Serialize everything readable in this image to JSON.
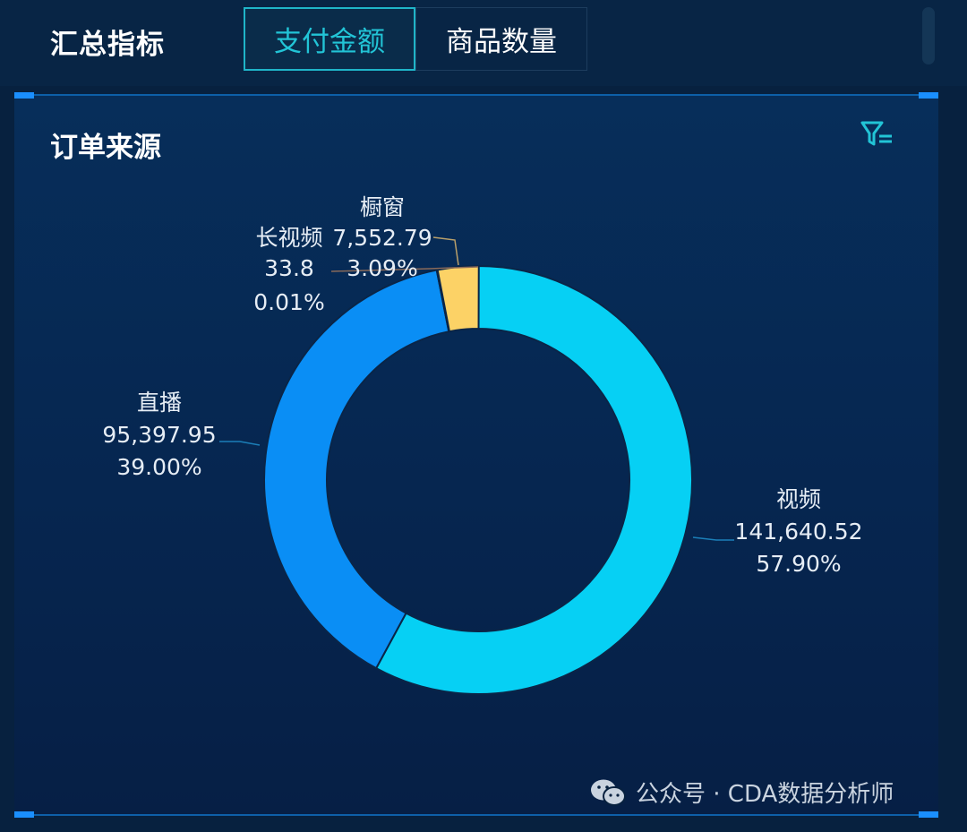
{
  "header": {
    "title": "汇总指标",
    "tabs": [
      {
        "label": "支付金额",
        "active": true
      },
      {
        "label": "商品数量",
        "active": false
      }
    ]
  },
  "panel": {
    "title": "订单来源"
  },
  "watermark": {
    "text": "公众号 · CDA数据分析师"
  },
  "colors": {
    "background": "#07213f",
    "active_tab": "#22c4d6",
    "corner_accent": "#1a8fff"
  },
  "chart_data": {
    "type": "pie",
    "title": "订单来源",
    "donut": true,
    "slices": [
      {
        "name": "视频",
        "value": "141,640.52",
        "percent": "57.90%",
        "numeric": 141640.52,
        "color": "#06d0f4"
      },
      {
        "name": "直播",
        "value": "95,397.95",
        "percent": "39.00%",
        "numeric": 95397.95,
        "color": "#0a8ef5"
      },
      {
        "name": "长视频",
        "value": "33.8",
        "percent": "0.01%",
        "numeric": 33.8,
        "color": "#7d4c3a"
      },
      {
        "name": "橱窗",
        "value": "7,552.79",
        "percent": "3.09%",
        "numeric": 7552.79,
        "color": "#fcd266"
      }
    ]
  }
}
